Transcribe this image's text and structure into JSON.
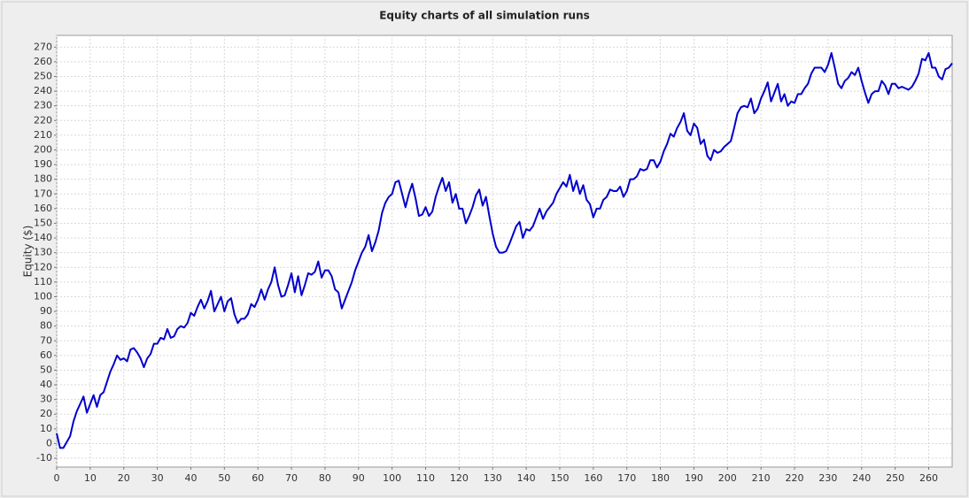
{
  "chart_data": {
    "type": "line",
    "title": "Equity charts of all simulation runs",
    "y_label": "Equity ($)",
    "x": [
      0,
      1,
      2,
      3,
      4,
      5,
      6,
      7,
      8,
      9,
      10,
      11,
      12,
      13,
      14,
      15,
      16,
      17,
      18,
      19,
      20,
      21,
      22,
      23,
      24,
      25,
      26,
      27,
      28,
      29,
      30,
      31,
      32,
      33,
      34,
      35,
      36,
      37,
      38,
      39,
      40,
      41,
      42,
      43,
      44,
      45,
      46,
      47,
      48,
      49,
      50,
      51,
      52,
      53,
      54,
      55,
      56,
      57,
      58,
      59,
      60,
      61,
      62,
      63,
      64,
      65,
      66,
      67,
      68,
      69,
      70,
      71,
      72,
      73,
      74,
      75,
      76,
      77,
      78,
      79,
      80,
      81,
      82,
      83,
      84,
      85,
      86,
      87,
      88,
      89,
      90,
      91,
      92,
      93,
      94,
      95,
      96,
      97,
      98,
      99,
      100,
      101,
      102,
      103,
      104,
      105,
      106,
      107,
      108,
      109,
      110,
      111,
      112,
      113,
      114,
      115,
      116,
      117,
      118,
      119,
      120,
      121,
      122,
      123,
      124,
      125,
      126,
      127,
      128,
      129,
      130,
      131,
      132,
      133,
      134,
      135,
      136,
      137,
      138,
      139,
      140,
      141,
      142,
      143,
      144,
      145,
      146,
      147,
      148,
      149,
      150,
      151,
      152,
      153,
      154,
      155,
      156,
      157,
      158,
      159,
      160,
      161,
      162,
      163,
      164,
      165,
      166,
      167,
      168,
      169,
      170,
      171,
      172,
      173,
      174,
      175,
      176,
      177,
      178,
      179,
      180,
      181,
      182,
      183,
      184,
      185,
      186,
      187,
      188,
      189,
      190,
      191,
      192,
      193,
      194,
      195,
      196,
      197,
      198,
      199,
      200,
      201,
      202,
      203,
      204,
      205,
      206,
      207,
      208,
      209,
      210,
      211,
      212,
      213,
      214,
      215,
      216,
      217,
      218,
      219,
      220,
      221,
      222,
      223,
      224,
      225,
      226,
      227,
      228,
      229,
      230,
      231,
      232,
      233,
      234,
      235,
      236,
      237,
      238,
      239,
      240,
      241,
      242,
      243,
      244,
      245,
      246,
      247,
      248,
      249,
      250,
      251,
      252,
      253,
      254,
      255,
      256,
      257,
      258,
      259,
      260,
      261,
      262,
      263,
      264,
      265,
      266,
      267
    ],
    "series": [
      {
        "color": "#0000cc",
        "values": [
          7,
          -3,
          -3,
          1,
          5,
          15,
          22,
          27,
          32,
          21,
          27,
          33,
          25,
          33,
          35,
          42,
          49,
          54,
          60,
          57,
          58,
          56,
          64,
          65,
          62,
          58,
          52,
          58,
          61,
          68,
          68,
          72,
          71,
          78,
          72,
          73,
          78,
          80,
          79,
          82,
          89,
          87,
          93,
          98,
          92,
          97,
          104,
          90,
          95,
          100,
          90,
          97,
          99,
          88,
          82,
          85,
          85,
          88,
          95,
          93,
          98,
          105,
          98,
          105,
          110,
          120,
          108,
          100,
          101,
          108,
          116,
          103,
          114,
          101,
          108,
          116,
          115,
          117,
          124,
          113,
          118,
          118,
          114,
          105,
          103,
          92,
          98,
          104,
          110,
          118,
          124,
          130,
          134,
          142,
          131,
          137,
          145,
          157,
          164,
          168,
          170,
          178,
          179,
          170,
          161,
          170,
          177,
          167,
          155,
          156,
          161,
          155,
          158,
          168,
          175,
          181,
          172,
          178,
          164,
          170,
          160,
          160,
          150,
          155,
          161,
          169,
          173,
          162,
          168,
          155,
          143,
          134,
          130,
          130,
          131,
          136,
          142,
          148,
          151,
          140,
          146,
          145,
          148,
          154,
          160,
          153,
          158,
          161,
          164,
          170,
          174,
          178,
          175,
          183,
          172,
          179,
          170,
          176,
          166,
          163,
          154,
          160,
          160,
          166,
          168,
          173,
          172,
          172,
          175,
          168,
          172,
          180,
          180,
          182,
          187,
          186,
          187,
          193,
          193,
          188,
          192,
          199,
          204,
          211,
          209,
          215,
          219,
          225,
          213,
          210,
          218,
          215,
          204,
          207,
          196,
          193,
          200,
          198,
          199,
          202,
          204,
          206,
          215,
          225,
          229,
          230,
          229,
          235,
          225,
          228,
          235,
          240,
          246,
          233,
          239,
          245,
          233,
          238,
          230,
          233,
          232,
          238,
          238,
          242,
          245,
          252,
          256,
          256,
          256,
          253,
          258,
          266,
          256,
          245,
          242,
          247,
          249,
          253,
          251,
          256,
          247,
          239,
          232,
          238,
          240,
          240,
          247,
          244,
          238,
          245,
          245,
          242,
          243,
          242,
          241,
          243,
          247,
          252,
          262,
          261,
          266,
          256,
          256,
          250,
          248,
          255,
          256,
          259
        ]
      }
    ],
    "xlim": [
      0,
      267
    ],
    "ylim": [
      -16,
      278
    ],
    "xticks": [
      0,
      10,
      20,
      30,
      40,
      50,
      60,
      70,
      80,
      90,
      100,
      110,
      120,
      130,
      140,
      150,
      160,
      170,
      180,
      190,
      200,
      210,
      220,
      230,
      240,
      250,
      260
    ],
    "yticks": [
      -10,
      0,
      10,
      20,
      30,
      40,
      50,
      60,
      70,
      80,
      90,
      100,
      110,
      120,
      130,
      140,
      150,
      160,
      170,
      180,
      190,
      200,
      210,
      220,
      230,
      240,
      250,
      260,
      270
    ],
    "grid": true
  }
}
